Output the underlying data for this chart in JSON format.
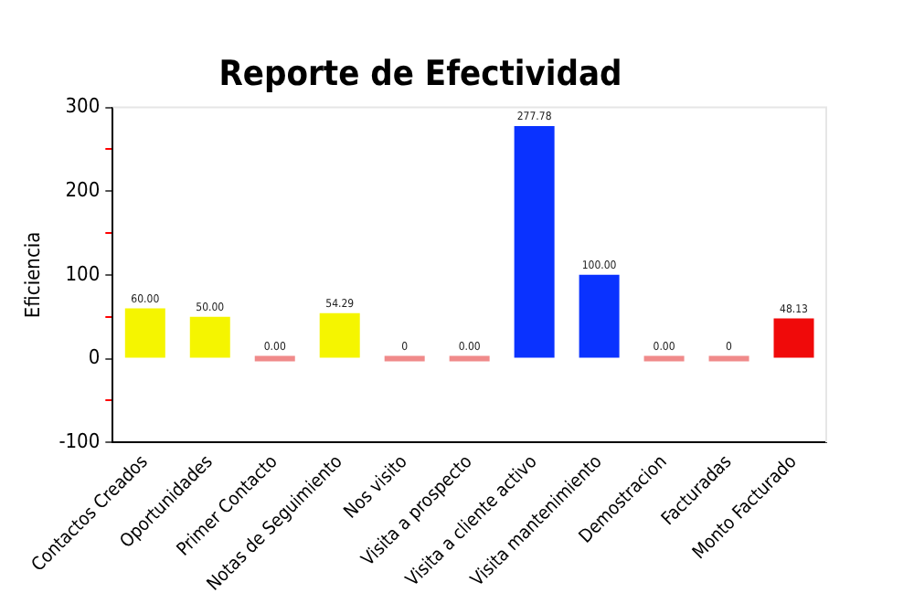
{
  "chart_data": {
    "type": "bar",
    "title": "Reporte de Efectividad",
    "ylabel": "Eficiencia",
    "categories": [
      "Contactos Creados",
      "Oportunidades",
      "Primer Contacto",
      "Notas de Seguimiento",
      "Nos visito",
      "Visita a prospecto",
      "Visita a cliente activo",
      "Visita mantenimiento",
      "Demostracion",
      "Facturadas",
      "Monto Facturado"
    ],
    "values": [
      60,
      50,
      0,
      54.29,
      0,
      0,
      277.78,
      100,
      0,
      0,
      48.13
    ],
    "value_labels": [
      "60.00",
      "50.00",
      "0.00",
      "54.29",
      "0",
      "0.00",
      "277.78",
      "100.00",
      "0.00",
      "0",
      "48.13"
    ],
    "colors": [
      "#f5f500",
      "#f5f500",
      "#f08a8a",
      "#f5f500",
      "#f08a8a",
      "#f08a8a",
      "#0a32ff",
      "#0a32ff",
      "#f08a8a",
      "#f08a8a",
      "#f00a0a"
    ],
    "ylim": [
      -100,
      300
    ],
    "yticks": [
      -100,
      {
        "value": -50,
        "label": null
      },
      0,
      {
        "value": 50,
        "label": null
      },
      100,
      {
        "value": 150,
        "label": null
      },
      200,
      {
        "value": 250,
        "label": null
      },
      300
    ],
    "grid": false,
    "legend": false
  }
}
